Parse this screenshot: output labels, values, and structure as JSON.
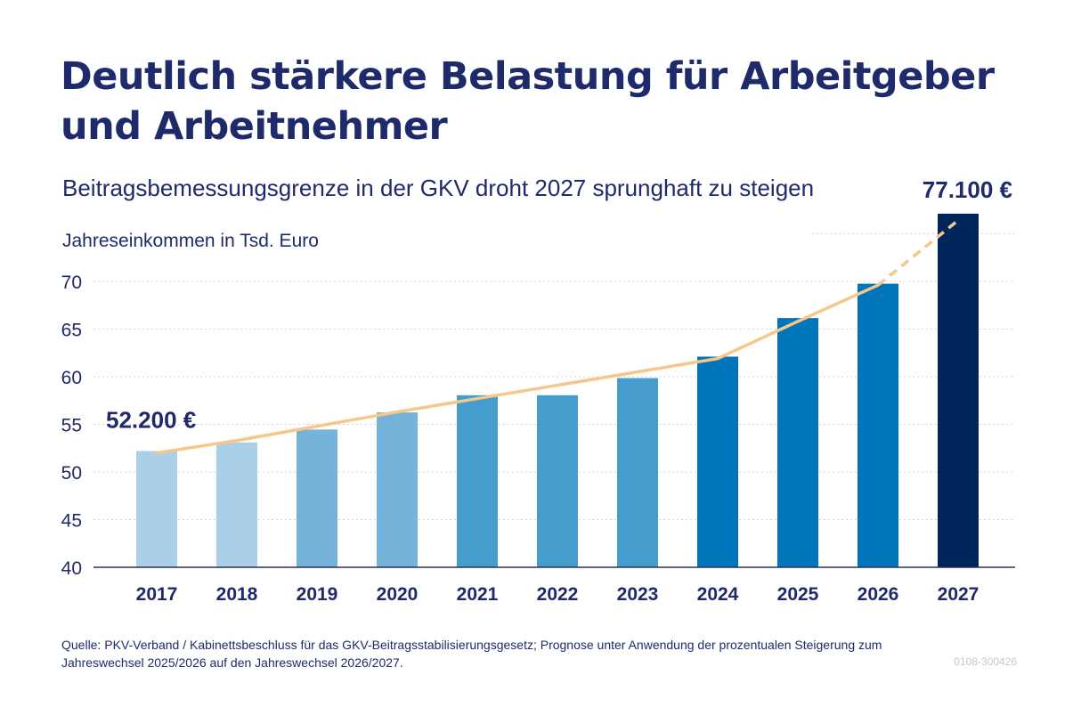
{
  "title": "Deutlich stärkere Belastung für Arbeitgeber und Arbeitnehmer",
  "subtitle": "Beitragsbemessungsgrenze in der GKV droht 2027 sprunghaft zu steigen",
  "source": "Quelle: PKV-Verband / Kabinettsbeschluss für das GKV-Beitragsstabilisierungsgesetz; Prognose unter Anwendung der prozentualen Steigerung zum Jahreswechsel 2025/2026 auf den Jahreswechsel 2026/2027.",
  "code": "0108-300426",
  "chart_data": {
    "type": "bar",
    "ylabel": "Jahreseinkommen in Tsd. Euro",
    "categories": [
      "2017",
      "2018",
      "2019",
      "2020",
      "2021",
      "2022",
      "2023",
      "2024",
      "2025",
      "2026",
      "2027"
    ],
    "values": [
      52.2,
      53.1,
      54.45,
      56.25,
      58.05,
      58.05,
      59.85,
      62.1,
      66.15,
      69.75,
      77.1
    ],
    "ylim": [
      40,
      77
    ],
    "yticks": [
      "40",
      "45",
      "50",
      "55",
      "60",
      "65",
      "70"
    ],
    "grid": true,
    "bar_colors": [
      "#a9d0e6",
      "#a9d0e6",
      "#76b3da",
      "#76b3da",
      "#449dcd",
      "#449dcd",
      "#449dcd",
      "#0075b9",
      "#0075b9",
      "#0075b9",
      "#00265c"
    ],
    "trend": {
      "color": "#f5c78a",
      "values": [
        52,
        53.3,
        54.8,
        56.3,
        57.7,
        59.1,
        60.5,
        61.9,
        65.8,
        69.6,
        76.4
      ],
      "dashed_from_index": 9
    },
    "annotations": [
      {
        "category": "2017",
        "text": "52.200 €"
      },
      {
        "category": "2027",
        "text": "77.100 €"
      }
    ],
    "colors": {
      "axis": "#1f2a6b",
      "grid": "#cfd3db",
      "text": "#1f2a6b"
    }
  }
}
